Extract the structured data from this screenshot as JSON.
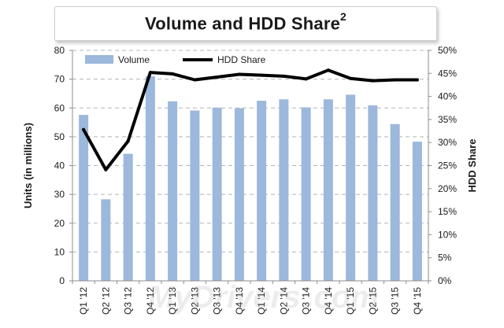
{
  "title": {
    "main": "Volume and HDD Share",
    "superscript": "2"
  },
  "watermark": {
    "brand": "MyDrivers",
    "suffix": ".com"
  },
  "colors": {
    "bar": "#9cb8dc",
    "line": "#000000",
    "grid": "#b4b4b4",
    "axis": "#8c8c8c",
    "text": "#1a1a1a"
  },
  "chart_data": {
    "type": "bar+line",
    "categories": [
      "Q1 '12",
      "Q2 '12",
      "Q3 '12",
      "Q4 '12",
      "Q1 '13",
      "Q2 '13",
      "Q3 '13",
      "Q4 '13",
      "Q1 '14",
      "Q2 '14",
      "Q3 '14",
      "Q4 '14",
      "Q1 '15",
      "Q2 '15",
      "Q3 '15",
      "Q4 '15"
    ],
    "series": [
      {
        "name": "Volume",
        "type": "bar",
        "axis": "left",
        "values": [
          57.6,
          28.3,
          44.1,
          71.0,
          62.3,
          59.1,
          60.1,
          59.9,
          62.5,
          63.0,
          60.2,
          63.0,
          64.6,
          60.9,
          54.4,
          48.3
        ]
      },
      {
        "name": "HDD Share",
        "type": "line",
        "axis": "right",
        "values": [
          32.8,
          24.1,
          30.3,
          45.2,
          44.9,
          43.6,
          44.2,
          44.8,
          44.6,
          44.4,
          43.8,
          45.7,
          43.9,
          43.4,
          43.6,
          43.6
        ]
      }
    ],
    "ylabel": "Units (in millions)",
    "y2label": "HDD Share",
    "ylim": [
      0,
      80
    ],
    "y2lim": [
      0,
      50
    ],
    "yticks": [
      "0",
      "10",
      "20",
      "30",
      "40",
      "50",
      "60",
      "70",
      "80"
    ],
    "y2ticks": [
      "0%",
      "5%",
      "10%",
      "15%",
      "20%",
      "25%",
      "30%",
      "35%",
      "40%",
      "45%",
      "50%"
    ],
    "grid": "horizontal dashed",
    "legend": "top-left"
  }
}
